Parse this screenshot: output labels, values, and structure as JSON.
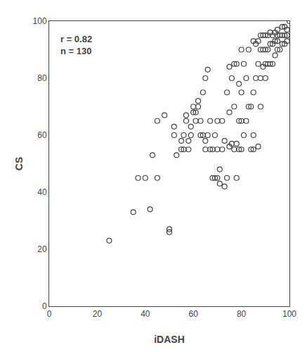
{
  "chart_data": {
    "type": "scatter",
    "title": "",
    "xlabel": "iDASH",
    "ylabel": "CS",
    "annotation": "r = 0.82\nn = 130",
    "color": "#444444",
    "marker": "circle-open",
    "grid": false,
    "xlim": [
      0,
      100
    ],
    "ylim": [
      0,
      100
    ],
    "xticks": [
      0,
      20,
      40,
      60,
      80,
      100
    ],
    "yticks": [
      0,
      20,
      40,
      60,
      80,
      100
    ],
    "x": [
      25,
      35,
      37,
      40,
      42,
      43,
      45,
      45,
      48,
      50,
      50,
      52,
      52,
      53,
      55,
      55,
      56,
      56,
      57,
      57,
      58,
      58,
      59,
      59,
      60,
      60,
      61,
      61,
      62,
      62,
      63,
      63,
      64,
      64,
      65,
      65,
      65,
      66,
      66,
      67,
      67,
      68,
      68,
      69,
      69,
      70,
      70,
      70,
      71,
      71,
      72,
      72,
      73,
      73,
      74,
      74,
      75,
      75,
      75,
      76,
      76,
      77,
      77,
      77,
      78,
      78,
      78,
      79,
      79,
      79,
      80,
      80,
      80,
      80,
      81,
      81,
      82,
      82,
      83,
      83,
      84,
      84,
      85,
      85,
      85,
      85,
      86,
      86,
      87,
      87,
      87,
      88,
      88,
      88,
      88,
      89,
      89,
      89,
      90,
      90,
      90,
      90,
      91,
      91,
      91,
      92,
      92,
      92,
      93,
      93,
      93,
      94,
      94,
      94,
      95,
      95,
      95,
      95,
      96,
      96,
      97,
      97,
      97,
      98,
      98,
      98,
      99,
      99,
      99,
      100
    ],
    "y": [
      23,
      33,
      45,
      45,
      34,
      53,
      45,
      65,
      67,
      26,
      27,
      60,
      63,
      53,
      55,
      58,
      55,
      60,
      65,
      67,
      55,
      58,
      60,
      63,
      68,
      70,
      65,
      68,
      70,
      72,
      60,
      65,
      60,
      75,
      55,
      58,
      80,
      60,
      83,
      55,
      65,
      45,
      55,
      45,
      60,
      45,
      55,
      65,
      43,
      48,
      55,
      65,
      42,
      58,
      45,
      75,
      56,
      68,
      84,
      57,
      80,
      55,
      70,
      85,
      45,
      57,
      85,
      55,
      65,
      78,
      55,
      65,
      75,
      90,
      60,
      85,
      65,
      80,
      70,
      90,
      55,
      70,
      55,
      60,
      75,
      93,
      80,
      92,
      56,
      85,
      93,
      70,
      80,
      90,
      95,
      84,
      90,
      95,
      80,
      85,
      90,
      95,
      85,
      90,
      95,
      85,
      92,
      96,
      85,
      92,
      95,
      88,
      93,
      96,
      90,
      93,
      95,
      97,
      90,
      95,
      92,
      95,
      98,
      92,
      95,
      98,
      93,
      95,
      97,
      100
    ]
  }
}
